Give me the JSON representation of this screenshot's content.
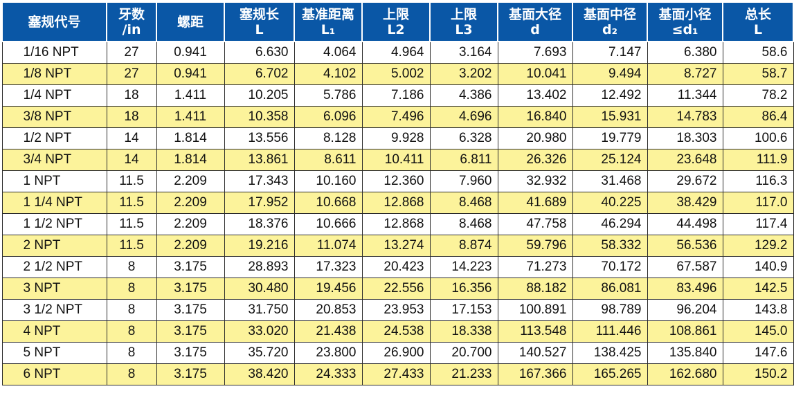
{
  "colors": {
    "header_bg": "#0a57a6",
    "header_text": "#ffffff",
    "stripe": "#fcf39b",
    "row": "#ffffff",
    "border": "#2b2b2b"
  },
  "headers": [
    {
      "line1": "塞规代号",
      "line2": ""
    },
    {
      "line1": "牙数",
      "line2": "/in"
    },
    {
      "line1": "螺距",
      "line2": ""
    },
    {
      "line1": "塞规长",
      "line2": "L"
    },
    {
      "line1": "基准距离",
      "line2": "L₁"
    },
    {
      "line1": "上限",
      "line2": "L2"
    },
    {
      "line1": "上限",
      "line2": "L3"
    },
    {
      "line1": "基面大径",
      "line2": "d"
    },
    {
      "line1": "基面中径",
      "line2": "d₂"
    },
    {
      "line1": "基面小径",
      "line2": "≤d₁"
    },
    {
      "line1": "总长",
      "line2": "L"
    }
  ],
  "rows": [
    [
      "1/16 NPT",
      "27",
      "0.941",
      "6.630",
      "4.064",
      "4.964",
      "3.164",
      "7.693",
      "7.147",
      "6.380",
      "58.6"
    ],
    [
      "1/8 NPT",
      "27",
      "0.941",
      "6.702",
      "4.102",
      "5.002",
      "3.202",
      "10.041",
      "9.494",
      "8.727",
      "58.7"
    ],
    [
      "1/4 NPT",
      "18",
      "1.411",
      "10.205",
      "5.786",
      "7.186",
      "4.386",
      "13.402",
      "12.492",
      "11.344",
      "78.2"
    ],
    [
      "3/8 NPT",
      "18",
      "1.411",
      "10.358",
      "6.096",
      "7.496",
      "4.696",
      "16.840",
      "15.931",
      "14.783",
      "86.4"
    ],
    [
      "1/2 NPT",
      "14",
      "1.814",
      "13.556",
      "8.128",
      "9.928",
      "6.328",
      "20.980",
      "19.779",
      "18.303",
      "100.6"
    ],
    [
      "3/4 NPT",
      "14",
      "1.814",
      "13.861",
      "8.611",
      "10.411",
      "6.811",
      "26.326",
      "25.124",
      "23.648",
      "111.9"
    ],
    [
      "1 NPT",
      "11.5",
      "2.209",
      "17.343",
      "10.160",
      "12.360",
      "7.960",
      "32.932",
      "31.468",
      "29.672",
      "116.3"
    ],
    [
      "1 1/4 NPT",
      "11.5",
      "2.209",
      "17.952",
      "10.668",
      "12.868",
      "8.468",
      "41.689",
      "40.225",
      "38.429",
      "117.0"
    ],
    [
      "1 1/2 NPT",
      "11.5",
      "2.209",
      "18.376",
      "10.666",
      "12.868",
      "8.468",
      "47.758",
      "46.294",
      "44.498",
      "117.4"
    ],
    [
      "2 NPT",
      "11.5",
      "2.209",
      "19.216",
      "11.074",
      "13.274",
      "8.874",
      "59.796",
      "58.332",
      "56.536",
      "129.2"
    ],
    [
      "2 1/2 NPT",
      "8",
      "3.175",
      "28.893",
      "17.323",
      "20.423",
      "14.223",
      "71.273",
      "70.172",
      "67.587",
      "140.9"
    ],
    [
      "3 NPT",
      "8",
      "3.175",
      "30.480",
      "19.456",
      "22.556",
      "16.356",
      "88.182",
      "86.081",
      "83.496",
      "142.5"
    ],
    [
      "3 1/2 NPT",
      "8",
      "3.175",
      "31.750",
      "20.853",
      "23.953",
      "17.153",
      "100.891",
      "98.789",
      "96.204",
      "143.8"
    ],
    [
      "4 NPT",
      "8",
      "3.175",
      "33.020",
      "21.438",
      "24.538",
      "18.338",
      "113.548",
      "111.446",
      "108.861",
      "145.0"
    ],
    [
      "5 NPT",
      "8",
      "3.175",
      "35.720",
      "23.800",
      "26.900",
      "20.700",
      "140.527",
      "138.425",
      "135.840",
      "147.6"
    ],
    [
      "6 NPT",
      "8",
      "3.175",
      "38.420",
      "24.333",
      "27.433",
      "21.233",
      "167.366",
      "165.265",
      "162.680",
      "150.2"
    ]
  ]
}
